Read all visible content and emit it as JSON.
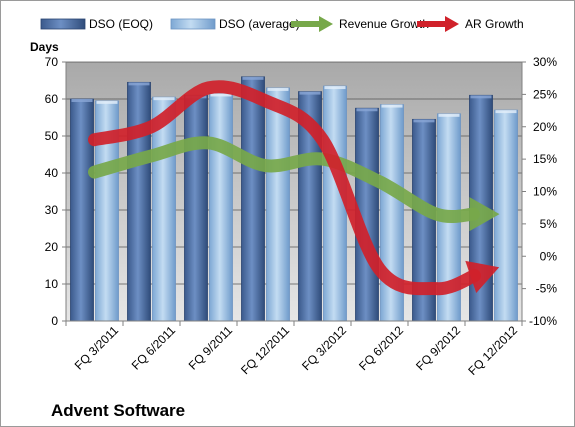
{
  "chart_data": {
    "type": "bar",
    "title": "Advent Software",
    "ylabel_left": "Days",
    "categories": [
      "FQ 3/2011",
      "FQ 6/2011",
      "FQ 9/2011",
      "FQ 12/2011",
      "FQ 3/2012",
      "FQ 6/2012",
      "FQ 9/2012",
      "FQ 12/2012"
    ],
    "left_axis": {
      "ylim": [
        0,
        70
      ],
      "ticks": [
        "0",
        "10",
        "20",
        "30",
        "40",
        "50",
        "60",
        "70"
      ],
      "tick_values": [
        0,
        10,
        20,
        30,
        40,
        50,
        60,
        70
      ]
    },
    "right_axis": {
      "ylim": [
        -10,
        30
      ],
      "ticks": [
        "-10%",
        "-5%",
        "0%",
        "5%",
        "10%",
        "15%",
        "20%",
        "25%",
        "30%"
      ],
      "tick_values": [
        -10,
        -5,
        0,
        5,
        10,
        15,
        20,
        25,
        30
      ]
    },
    "series": [
      {
        "name": "DSO (EOQ)",
        "kind": "bar",
        "axis": "left",
        "color": "#4f6fa3",
        "values": [
          60,
          64.5,
          61,
          66,
          62,
          57.5,
          54.5,
          61
        ]
      },
      {
        "name": "DSO (average)",
        "kind": "bar",
        "axis": "left",
        "color": "#9ec3e6",
        "values": [
          59.5,
          60.5,
          61.5,
          63,
          63.5,
          58.5,
          56,
          57
        ]
      },
      {
        "name": "Revenue Growth",
        "kind": "arrow-line",
        "axis": "right",
        "color": "#77a84a",
        "values": [
          13,
          15.5,
          17.5,
          14,
          15,
          11.5,
          6.5,
          6.5
        ]
      },
      {
        "name": "AR Growth",
        "kind": "arrow-line",
        "axis": "right",
        "color": "#d0212a",
        "values": [
          18,
          20,
          26,
          24,
          18,
          -2,
          -5,
          -2
        ]
      }
    ],
    "grid": "horizontal",
    "legend_position": "top"
  }
}
